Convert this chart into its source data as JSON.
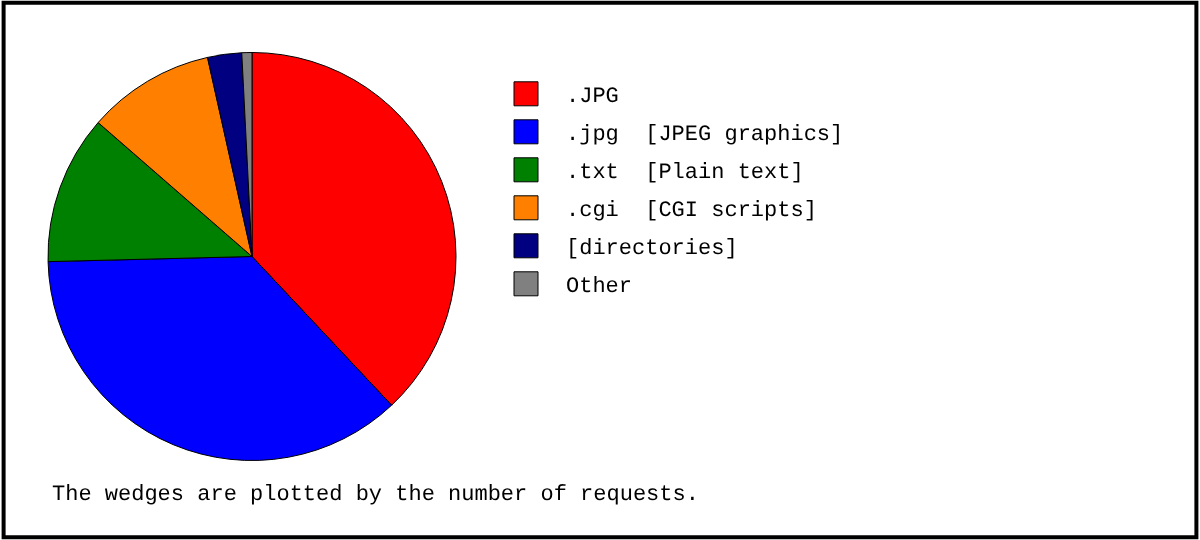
{
  "chart_data": {
    "type": "pie",
    "categories": [
      ".JPG",
      ".jpg  [JPEG graphics]",
      ".txt  [Plain text]",
      ".cgi  [CGI scripts]",
      "[directories]",
      "Other"
    ],
    "values": [
      38,
      36.6,
      11.8,
      10.1,
      2.7,
      0.8
    ],
    "colors": [
      "#ff0000",
      "#0000ff",
      "#008000",
      "#ff8000",
      "#000080",
      "#808080"
    ],
    "legend": "right",
    "annotations": [
      "The wedges are plotted by the number of requests."
    ]
  }
}
